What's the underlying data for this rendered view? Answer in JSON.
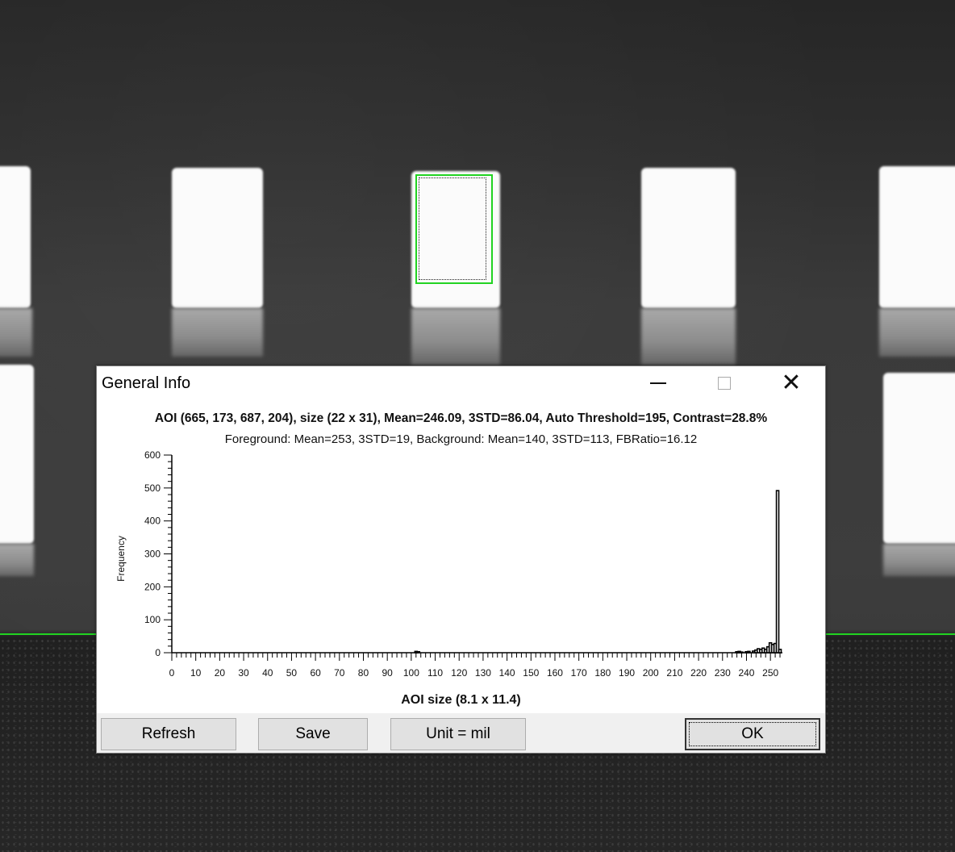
{
  "dialog": {
    "title": "General Info",
    "info_line1": "AOI (665, 173, 687, 204), size (22 x 31), Mean=246.09, 3STD=86.04, Auto Threshold=195, Contrast=28.8%",
    "info_line2": "Foreground: Mean=253, 3STD=19, Background: Mean=140, 3STD=113, FBRatio=16.12",
    "footer_label": "AOI size (8.1 x 11.4)"
  },
  "buttons": {
    "refresh": "Refresh",
    "save": "Save",
    "unit": "Unit = mil",
    "ok": "OK"
  },
  "icons": {
    "minimize": "minimize-icon",
    "maximize": "maximize-icon",
    "close": "close-icon"
  },
  "colors": {
    "aoi_outline": "#22d322",
    "bar_stroke": "#000000"
  },
  "chart_data": {
    "type": "bar",
    "title": "",
    "xlabel": "",
    "ylabel": "Frequency",
    "xlim": [
      0,
      255
    ],
    "ylim": [
      0,
      600
    ],
    "x_ticks": [
      0,
      10,
      20,
      30,
      40,
      50,
      60,
      70,
      80,
      90,
      100,
      110,
      120,
      130,
      140,
      150,
      160,
      170,
      180,
      190,
      200,
      210,
      220,
      230,
      240,
      250
    ],
    "y_ticks": [
      0,
      100,
      200,
      300,
      400,
      500,
      600
    ],
    "grid": false,
    "x": [
      102,
      103,
      236,
      237,
      238,
      240,
      241,
      243,
      244,
      245,
      246,
      247,
      248,
      249,
      250,
      251,
      252,
      253,
      254
    ],
    "values": [
      4,
      3,
      3,
      4,
      2,
      3,
      4,
      5,
      8,
      12,
      10,
      14,
      10,
      18,
      30,
      25,
      28,
      492,
      10
    ]
  }
}
